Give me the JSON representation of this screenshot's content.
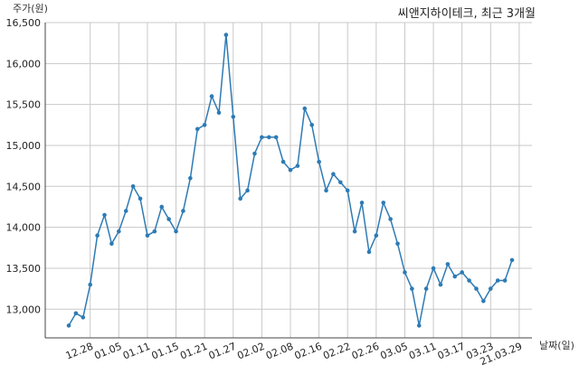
{
  "chart_data": {
    "type": "line",
    "title": "씨앤지하이테크, 최근 3개월",
    "ylabel": "주가(원)",
    "xlabel": "날짜(일)",
    "ylim": [
      12650,
      16500
    ],
    "yticks": [
      13000,
      13500,
      14000,
      14500,
      15000,
      15500,
      16000,
      16500
    ],
    "ytick_labels": [
      "13,000",
      "13,500",
      "14,000",
      "14,500",
      "15,000",
      "15,500",
      "16,000",
      "16,500"
    ],
    "xtick_labels": [
      "12.28",
      "01.05",
      "01.11",
      "01.15",
      "01.21",
      "01.27",
      "02.02",
      "02.08",
      "02.16",
      "02.22",
      "02.26",
      "03.05",
      "03.11",
      "03.17",
      "03.23",
      "21.03.29"
    ],
    "xtick_index": [
      3,
      7,
      11,
      15,
      19,
      23,
      27,
      31,
      35,
      39,
      43,
      47,
      51,
      55,
      59,
      63
    ],
    "grid": true,
    "values": [
      12800,
      12950,
      12900,
      13300,
      13900,
      14150,
      13800,
      13950,
      14200,
      14500,
      14350,
      13900,
      13950,
      14250,
      14100,
      13950,
      14200,
      14600,
      15200,
      15250,
      15600,
      15400,
      16350,
      15350,
      14350,
      14450,
      14900,
      15100,
      15100,
      15100,
      14800,
      14700,
      14750,
      15450,
      15250,
      14800,
      14450,
      14650,
      14550,
      14450,
      13950,
      14300,
      13700,
      13900,
      14300,
      14100,
      13800,
      13450,
      13250,
      12800,
      13250,
      13500,
      13300,
      13550,
      13400,
      13450,
      13350,
      13250,
      13100,
      13250,
      13350,
      13350,
      13600
    ]
  }
}
